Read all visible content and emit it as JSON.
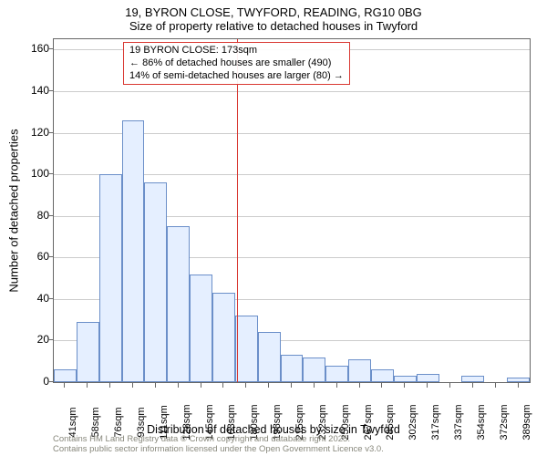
{
  "title": {
    "line1": "19, BYRON CLOSE, TWYFORD, READING, RG10 0BG",
    "line2": "Size of property relative to detached houses in Twyford"
  },
  "ylabel": "Number of detached properties",
  "xlabel": "Distribution of detached houses by size in Twyford",
  "footer": {
    "line1": "Contains HM Land Registry data © Crown copyright and database right 2025.",
    "line2": "Contains public sector information licensed under the Open Government Licence v3.0."
  },
  "chart": {
    "type": "histogram",
    "background_color": "#ffffff",
    "grid_color": "#cccccc",
    "axis_color": "#666666",
    "bar_fill": "#e5efff",
    "bar_stroke": "#6b8fc9",
    "marker_color": "#d93832",
    "font_family": "Arial",
    "title_fontsize": 13,
    "label_fontsize": 12,
    "tick_fontsize": 11,
    "ylim": [
      0,
      165
    ],
    "ytick_step": 20,
    "yticks": [
      0,
      20,
      40,
      60,
      80,
      100,
      120,
      140,
      160
    ],
    "bar_width_ratio": 1.0,
    "marker_value_sqm": 173,
    "categories": [
      "41sqm",
      "58sqm",
      "76sqm",
      "93sqm",
      "111sqm",
      "128sqm",
      "145sqm",
      "163sqm",
      "180sqm",
      "198sqm",
      "215sqm",
      "232sqm",
      "250sqm",
      "267sqm",
      "285sqm",
      "302sqm",
      "317sqm",
      "337sqm",
      "354sqm",
      "372sqm",
      "389sqm"
    ],
    "values": [
      6,
      29,
      100,
      126,
      96,
      75,
      52,
      43,
      32,
      24,
      13,
      12,
      8,
      11,
      6,
      3,
      4,
      0,
      3,
      0,
      2
    ]
  },
  "annotation": {
    "line1": "19 BYRON CLOSE: 173sqm",
    "line2": "← 86% of detached houses are smaller (490)",
    "line3": "14% of semi-detached houses are larger (80) →"
  }
}
